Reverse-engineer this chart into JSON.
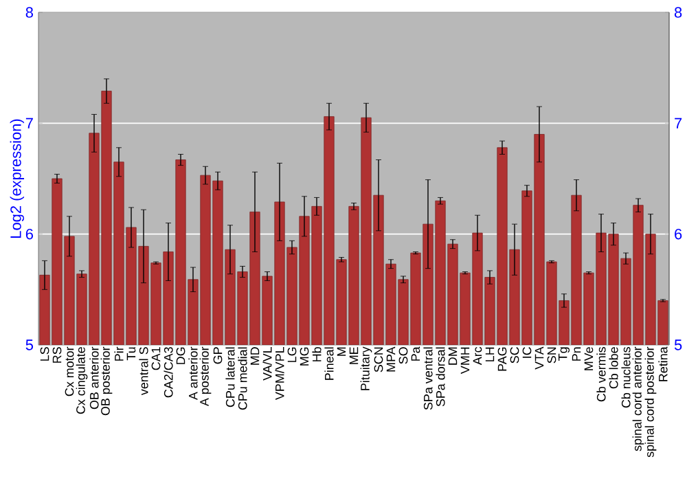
{
  "chart_data": {
    "type": "bar",
    "ylabel": "Log2 (expression)",
    "categories": [
      "LS",
      "RS",
      "Cx motor",
      "Cx cingulate",
      "OB anterior",
      "OB posterior",
      "Pir",
      "Tu",
      "ventral S",
      "CA1",
      "CA2/CA3",
      "DG",
      "A anterior",
      "A posterior",
      "GP",
      "CPu lateral",
      "CPu medial",
      "MD",
      "VA/VL",
      "VPM/VPL",
      "LG",
      "MG",
      "Hb",
      "Pineal",
      "M",
      "ME",
      "Pituitary",
      "SCN",
      "MPA",
      "SO",
      "Pa",
      "SPa ventral",
      "SPa dorsal",
      "DM",
      "VMH",
      "Arc",
      "LH",
      "PAG",
      "SC",
      "IC",
      "VTA",
      "SN",
      "Tg",
      "Pn",
      "MVe",
      "Cb vermis",
      "Cb lobe",
      "Cb nucleus",
      "spinal cord anterior",
      "spinal cord posterior",
      "Retina"
    ],
    "values": [
      5.63,
      6.5,
      5.98,
      5.64,
      6.91,
      7.29,
      6.65,
      6.06,
      5.89,
      5.74,
      5.84,
      6.67,
      5.59,
      6.53,
      6.48,
      5.86,
      5.66,
      6.2,
      5.62,
      6.29,
      5.88,
      6.16,
      6.25,
      7.06,
      5.77,
      6.25,
      7.05,
      6.35,
      5.73,
      5.59,
      5.83,
      6.09,
      6.3,
      5.91,
      5.65,
      6.01,
      5.61,
      6.78,
      5.86,
      6.39,
      6.9,
      5.75,
      5.4,
      6.35,
      5.65,
      6.01,
      6.0,
      5.78,
      6.26,
      6.0,
      5.4
    ],
    "errors": [
      0.13,
      0.04,
      0.18,
      0.03,
      0.17,
      0.11,
      0.13,
      0.18,
      0.33,
      0.01,
      0.26,
      0.05,
      0.11,
      0.08,
      0.08,
      0.22,
      0.05,
      0.36,
      0.04,
      0.35,
      0.06,
      0.18,
      0.08,
      0.12,
      0.02,
      0.03,
      0.13,
      0.32,
      0.04,
      0.03,
      0.01,
      0.4,
      0.03,
      0.04,
      0.01,
      0.16,
      0.06,
      0.06,
      0.23,
      0.05,
      0.25,
      0.01,
      0.06,
      0.14,
      0.01,
      0.17,
      0.1,
      0.05,
      0.06,
      0.18,
      0.01
    ],
    "color": "#b03232",
    "ylim": [
      5,
      8
    ],
    "yticks": [
      5,
      6,
      7,
      8
    ],
    "y2lim": [
      5,
      8
    ],
    "y2ticks": [
      5,
      6,
      7,
      8
    ],
    "grid": "y"
  }
}
